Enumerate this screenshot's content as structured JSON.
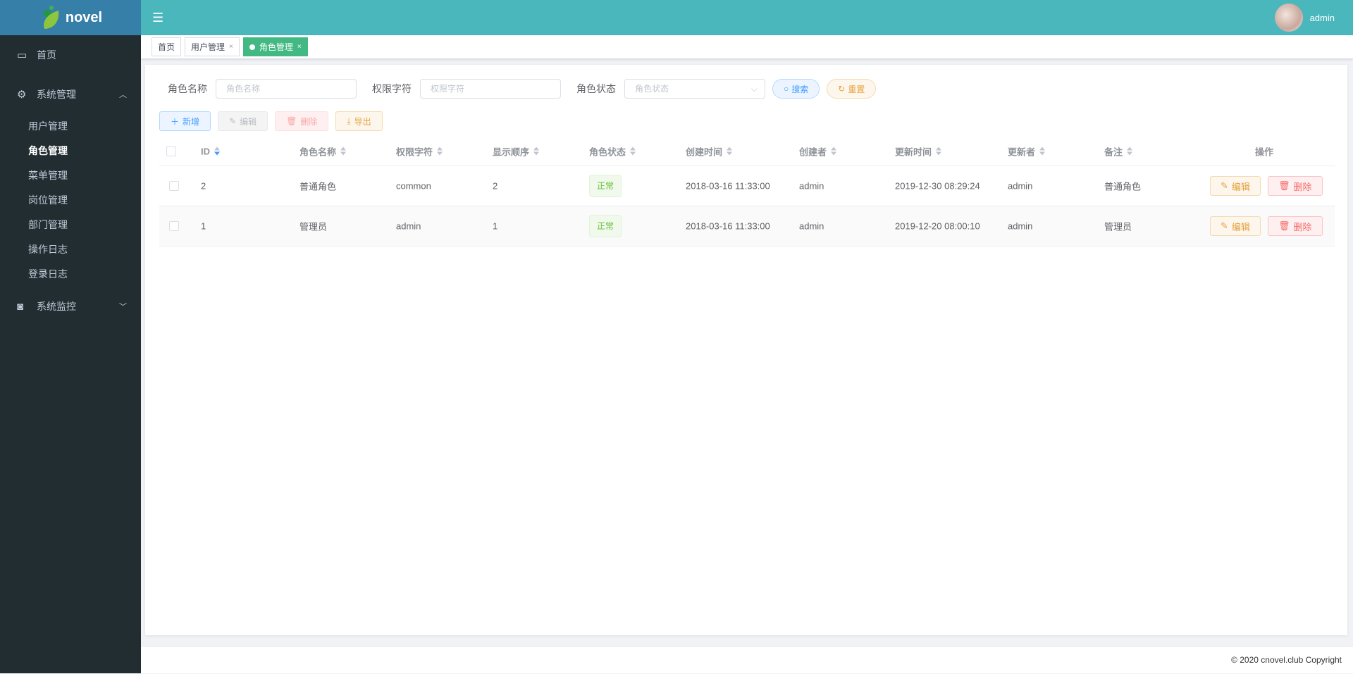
{
  "app": {
    "logo_text": "novel",
    "user_name": "admin"
  },
  "sidebar": {
    "home": "首页",
    "system": "系统管理",
    "sub": [
      "用户管理",
      "角色管理",
      "菜单管理",
      "岗位管理",
      "部门管理",
      "操作日志",
      "登录日志"
    ],
    "monitor": "系统监控"
  },
  "tabs": [
    {
      "label": "首页"
    },
    {
      "label": "用户管理",
      "close": "×"
    },
    {
      "label": "角色管理",
      "close": "×"
    }
  ],
  "search": {
    "name_label": "角色名称",
    "name_placeholder": "角色名称",
    "key_label": "权限字符",
    "key_placeholder": "权限字符",
    "status_label": "角色状态",
    "status_placeholder": "角色状态",
    "search": "搜索",
    "reset": "重置"
  },
  "toolbar": {
    "add": "新增",
    "edit": "编辑",
    "delete": "删除",
    "export": "导出"
  },
  "table": {
    "headers": [
      "ID",
      "角色名称",
      "权限字符",
      "显示顺序",
      "角色状态",
      "创建时间",
      "创建者",
      "更新时间",
      "更新者",
      "备注",
      "操作"
    ],
    "rows": [
      {
        "id": "2",
        "name": "普通角色",
        "key": "common",
        "sort": "2",
        "status": "正常",
        "created": "2018-03-16 11:33:00",
        "creator": "admin",
        "updated": "2019-12-30 08:29:24",
        "updater": "admin",
        "remark": "普通角色",
        "edit": "编辑",
        "delete": "删除"
      },
      {
        "id": "1",
        "name": "管理员",
        "key": "admin",
        "sort": "1",
        "status": "正常",
        "created": "2018-03-16 11:33:00",
        "creator": "admin",
        "updated": "2019-12-20 08:00:10",
        "updater": "admin",
        "remark": "管理员",
        "edit": "编辑",
        "delete": "删除"
      }
    ]
  },
  "footer": "© 2020 cnovel.club Copyright",
  "colors": {
    "sidebar": "#222d32",
    "logo_bg": "#367fa9",
    "header": "#4ab7bd",
    "active_tab": "#42b983"
  }
}
